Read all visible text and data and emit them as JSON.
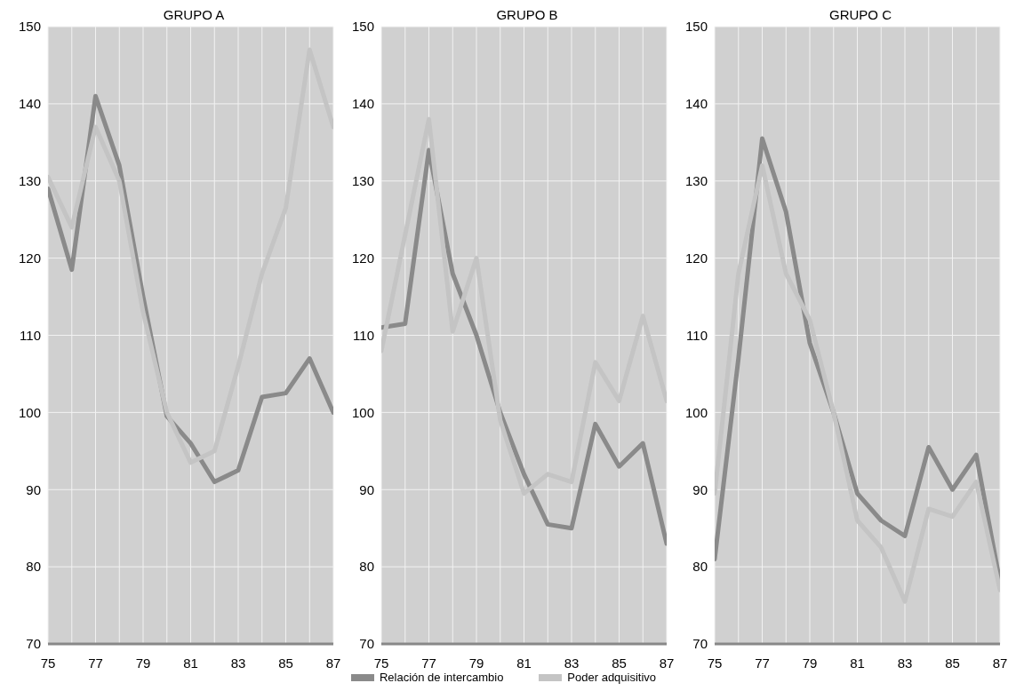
{
  "chart_data": [
    {
      "type": "line",
      "title": "GRUPO A",
      "x": [
        75,
        76,
        77,
        78,
        79,
        80,
        81,
        82,
        83,
        84,
        85,
        86,
        87
      ],
      "xlim": [
        75,
        87
      ],
      "xticks": [
        75,
        {
          "value": 76,
          "label": null
        },
        77,
        {
          "value": 78,
          "label": null
        },
        79,
        {
          "value": 80,
          "label": null
        },
        81,
        {
          "value": 82,
          "label": null
        },
        83,
        {
          "value": 84,
          "label": null
        },
        85,
        {
          "value": 86,
          "label": null
        },
        87
      ],
      "ylim": [
        70,
        150
      ],
      "yticks": [
        70,
        80,
        90,
        100,
        110,
        120,
        130,
        140,
        150
      ],
      "grid": true,
      "marker": "none",
      "series": [
        {
          "color": "#8a8a8a",
          "values": [
            129,
            118.5,
            141,
            132,
            115,
            99.5,
            96,
            91,
            92.5,
            102,
            102.5,
            107,
            100
          ]
        },
        {
          "color": "#c4c4c4",
          "values": [
            130.5,
            124,
            137,
            130,
            113,
            100,
            93.5,
            95,
            106,
            118,
            126.5,
            147,
            137
          ]
        }
      ]
    },
    {
      "type": "line",
      "title": "GRUPO B",
      "x": [
        75,
        76,
        77,
        78,
        79,
        80,
        81,
        82,
        83,
        84,
        85,
        86,
        87
      ],
      "xlim": [
        75,
        87
      ],
      "xticks": [
        75,
        {
          "value": 76,
          "label": null
        },
        77,
        {
          "value": 78,
          "label": null
        },
        79,
        {
          "value": 80,
          "label": null
        },
        81,
        {
          "value": 82,
          "label": null
        },
        83,
        {
          "value": 84,
          "label": null
        },
        85,
        {
          "value": 86,
          "label": null
        },
        87
      ],
      "ylim": [
        70,
        150
      ],
      "yticks": [
        70,
        80,
        90,
        100,
        110,
        120,
        130,
        140,
        150
      ],
      "grid": true,
      "marker": "none",
      "legend": "bottom",
      "series": [
        {
          "name": "Relación de intercambio",
          "color": "#8a8a8a",
          "values": [
            111,
            111.5,
            134,
            118,
            110,
            100,
            92,
            85.5,
            85,
            98.5,
            93,
            96,
            83
          ]
        },
        {
          "name": "Poder adquisitivo",
          "color": "#c4c4c4",
          "values": [
            108,
            123,
            138,
            110.5,
            120,
            99,
            89.5,
            92,
            91,
            106.5,
            101.5,
            112.5,
            101.5
          ]
        }
      ]
    },
    {
      "type": "line",
      "title": "GRUPO C",
      "x": [
        75,
        76,
        77,
        78,
        79,
        80,
        81,
        82,
        83,
        84,
        85,
        86,
        87
      ],
      "xlim": [
        75,
        87
      ],
      "xticks": [
        75,
        {
          "value": 76,
          "label": null
        },
        77,
        {
          "value": 78,
          "label": null
        },
        79,
        {
          "value": 80,
          "label": null
        },
        81,
        {
          "value": 82,
          "label": null
        },
        83,
        {
          "value": 84,
          "label": null
        },
        85,
        {
          "value": 86,
          "label": null
        },
        87
      ],
      "ylim": [
        70,
        150
      ],
      "yticks": [
        70,
        80,
        90,
        100,
        110,
        120,
        130,
        140,
        150
      ],
      "grid": true,
      "marker": "none",
      "series": [
        {
          "color": "#8a8a8a",
          "values": [
            81,
            107,
            135.5,
            126,
            109,
            100,
            89.5,
            86,
            84,
            95.5,
            90,
            94.5,
            78
          ]
        },
        {
          "color": "#c4c4c4",
          "values": [
            89.5,
            118,
            132,
            118,
            112,
            100,
            86,
            82.5,
            75.5,
            87.5,
            86.5,
            91,
            77
          ]
        }
      ]
    }
  ]
}
